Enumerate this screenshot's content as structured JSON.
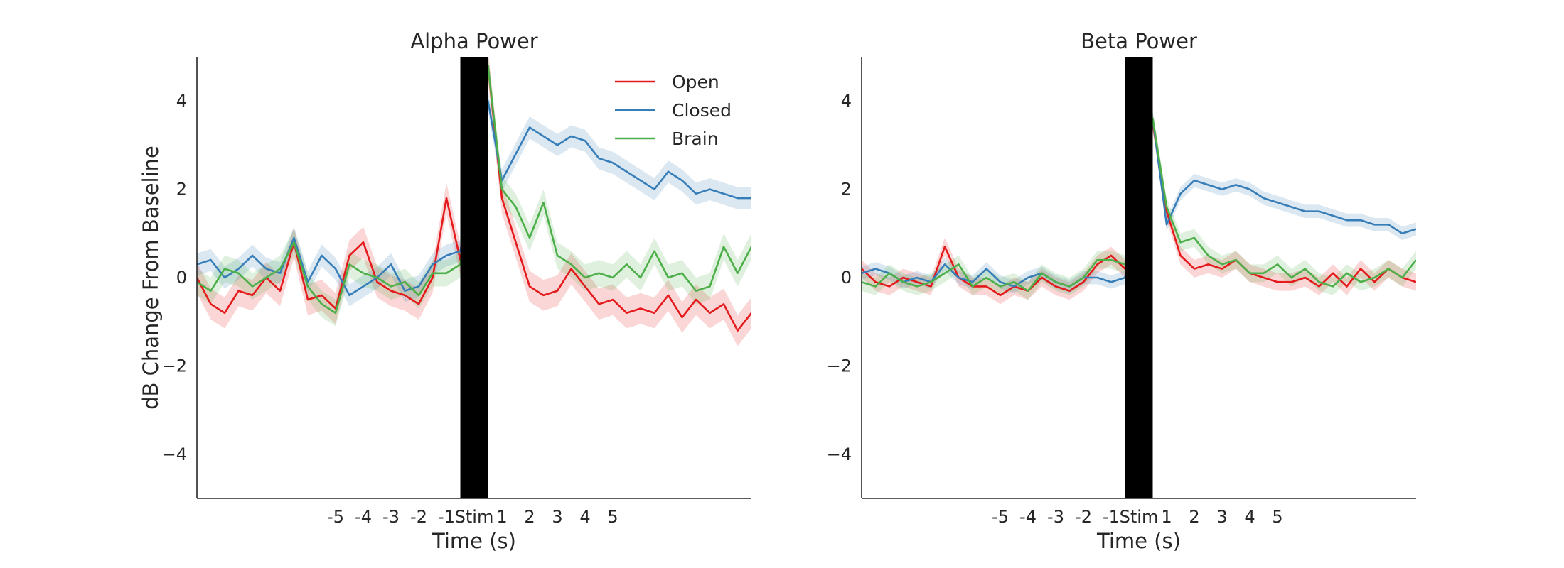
{
  "chart_data": [
    {
      "type": "line",
      "title": "Alpha Power",
      "xlabel": "Time (s)",
      "ylabel": "dB Change From Baseline",
      "xlim": [
        -10,
        10
      ],
      "ylim": [
        -5,
        5
      ],
      "xticks": [
        {
          "value": -5,
          "label": "-5"
        },
        {
          "value": -4,
          "label": "-4"
        },
        {
          "value": -3,
          "label": "-3"
        },
        {
          "value": -2,
          "label": "-2"
        },
        {
          "value": -1,
          "label": "-1"
        },
        {
          "value": 0,
          "label": "Stim"
        },
        {
          "value": 1,
          "label": "1"
        },
        {
          "value": 2,
          "label": "2"
        },
        {
          "value": 3,
          "label": "3"
        },
        {
          "value": 4,
          "label": "4"
        },
        {
          "value": 5,
          "label": "5"
        }
      ],
      "yticks": [
        {
          "value": -4,
          "label": "−4"
        },
        {
          "value": -2,
          "label": "−2"
        },
        {
          "value": 0,
          "label": "0"
        },
        {
          "value": 2,
          "label": "2"
        },
        {
          "value": 4,
          "label": "4"
        }
      ],
      "stim_band": [
        -0.5,
        0.5
      ],
      "legend": "top-right",
      "grid": false,
      "series": [
        {
          "name": "Open",
          "color": "#e41a1c",
          "x": [
            -10,
            -9.5,
            -9,
            -8.5,
            -8,
            -7.5,
            -7,
            -6.5,
            -6,
            -5.5,
            -5,
            -4.5,
            -4,
            -3.5,
            -3,
            -2.5,
            -2,
            -1.5,
            -1,
            -0.5,
            0.5,
            1,
            1.5,
            2,
            2.5,
            3,
            3.5,
            4,
            4.5,
            5,
            5.5,
            6,
            6.5,
            7,
            7.5,
            8,
            8.5,
            9,
            9.5,
            10
          ],
          "y": [
            0.0,
            -0.6,
            -0.8,
            -0.3,
            -0.4,
            0.0,
            -0.3,
            0.8,
            -0.5,
            -0.4,
            -0.7,
            0.5,
            0.8,
            -0.1,
            -0.3,
            -0.4,
            -0.6,
            0.0,
            1.8,
            0.4,
            4.8,
            1.8,
            0.8,
            -0.2,
            -0.4,
            -0.3,
            0.2,
            -0.2,
            -0.6,
            -0.5,
            -0.8,
            -0.7,
            -0.8,
            -0.4,
            -0.9,
            -0.5,
            -0.8,
            -0.6,
            -1.2,
            -0.8
          ],
          "ci": 0.35
        },
        {
          "name": "Closed",
          "color": "#377eb8",
          "x": [
            -10,
            -9.5,
            -9,
            -8.5,
            -8,
            -7.5,
            -7,
            -6.5,
            -6,
            -5.5,
            -5,
            -4.5,
            -4,
            -3.5,
            -3,
            -2.5,
            -2,
            -1.5,
            -1,
            -0.5,
            0.5,
            1,
            1.5,
            2,
            2.5,
            3,
            3.5,
            4,
            4.5,
            5,
            5.5,
            6,
            6.5,
            7,
            7.5,
            8,
            8.5,
            9,
            9.5,
            10
          ],
          "y": [
            0.3,
            0.4,
            0.0,
            0.2,
            0.5,
            0.2,
            0.1,
            0.9,
            -0.1,
            0.5,
            0.2,
            -0.4,
            -0.2,
            0.0,
            0.3,
            -0.3,
            -0.2,
            0.3,
            0.5,
            0.6,
            4.0,
            2.2,
            2.8,
            3.4,
            3.2,
            3.0,
            3.2,
            3.1,
            2.7,
            2.6,
            2.4,
            2.2,
            2.0,
            2.4,
            2.2,
            1.9,
            2.0,
            1.9,
            1.8,
            1.8
          ],
          "ci": 0.25
        },
        {
          "name": "Brain",
          "color": "#4daf4a",
          "x": [
            -10,
            -9.5,
            -9,
            -8.5,
            -8,
            -7.5,
            -7,
            -6.5,
            -6,
            -5.5,
            -5,
            -4.5,
            -4,
            -3.5,
            -3,
            -2.5,
            -2,
            -1.5,
            -1,
            -0.5,
            0.5,
            1,
            1.5,
            2,
            2.5,
            3,
            3.5,
            4,
            4.5,
            5,
            5.5,
            6,
            6.5,
            7,
            7.5,
            8,
            8.5,
            9,
            9.5,
            10
          ],
          "y": [
            -0.1,
            -0.3,
            0.2,
            0.1,
            -0.2,
            0.0,
            0.2,
            0.8,
            -0.2,
            -0.6,
            -0.8,
            0.3,
            0.1,
            0.0,
            -0.2,
            -0.1,
            -0.4,
            0.1,
            0.1,
            0.3,
            4.8,
            2.0,
            1.6,
            0.9,
            1.7,
            0.5,
            0.3,
            0.0,
            0.1,
            0.0,
            0.3,
            0.0,
            0.6,
            0.0,
            0.1,
            -0.3,
            -0.2,
            0.7,
            0.1,
            0.7
          ],
          "ci": 0.3
        }
      ]
    },
    {
      "type": "line",
      "title": "Beta Power",
      "xlabel": "Time (s)",
      "ylabel": "",
      "xlim": [
        -10,
        10
      ],
      "ylim": [
        -5,
        5
      ],
      "xticks": [
        {
          "value": -5,
          "label": "-5"
        },
        {
          "value": -4,
          "label": "-4"
        },
        {
          "value": -3,
          "label": "-3"
        },
        {
          "value": -2,
          "label": "-2"
        },
        {
          "value": -1,
          "label": "-1"
        },
        {
          "value": 0,
          "label": "Stim"
        },
        {
          "value": 1,
          "label": "1"
        },
        {
          "value": 2,
          "label": "2"
        },
        {
          "value": 3,
          "label": "3"
        },
        {
          "value": 4,
          "label": "4"
        },
        {
          "value": 5,
          "label": "5"
        }
      ],
      "yticks": [
        {
          "value": -4,
          "label": "−4"
        },
        {
          "value": -2,
          "label": "−2"
        },
        {
          "value": 0,
          "label": "0"
        },
        {
          "value": 2,
          "label": "2"
        },
        {
          "value": 4,
          "label": "4"
        }
      ],
      "stim_band": [
        -0.5,
        0.5
      ],
      "grid": false,
      "series": [
        {
          "name": "Open",
          "color": "#e41a1c",
          "x": [
            -10,
            -9.5,
            -9,
            -8.5,
            -8,
            -7.5,
            -7,
            -6.5,
            -6,
            -5.5,
            -5,
            -4.5,
            -4,
            -3.5,
            -3,
            -2.5,
            -2,
            -1.5,
            -1,
            -0.5,
            0.5,
            1,
            1.5,
            2,
            2.5,
            3,
            3.5,
            4,
            4.5,
            5,
            5.5,
            6,
            6.5,
            7,
            7.5,
            8,
            8.5,
            9,
            9.5,
            10
          ],
          "y": [
            0.2,
            -0.1,
            -0.2,
            0.0,
            -0.1,
            -0.2,
            0.7,
            0.0,
            -0.2,
            -0.2,
            -0.4,
            -0.2,
            -0.3,
            0.0,
            -0.2,
            -0.3,
            -0.1,
            0.3,
            0.5,
            0.2,
            3.5,
            1.5,
            0.5,
            0.2,
            0.3,
            0.2,
            0.4,
            0.1,
            0.0,
            -0.1,
            -0.1,
            0.0,
            -0.2,
            0.1,
            -0.2,
            0.2,
            -0.1,
            0.2,
            0.0,
            -0.1
          ],
          "ci": 0.2
        },
        {
          "name": "Closed",
          "color": "#377eb8",
          "x": [
            -10,
            -9.5,
            -9,
            -8.5,
            -8,
            -7.5,
            -7,
            -6.5,
            -6,
            -5.5,
            -5,
            -4.5,
            -4,
            -3.5,
            -3,
            -2.5,
            -2,
            -1.5,
            -1,
            -0.5,
            0.5,
            1,
            1.5,
            2,
            2.5,
            3,
            3.5,
            4,
            4.5,
            5,
            5.5,
            6,
            6.5,
            7,
            7.5,
            8,
            8.5,
            9,
            9.5,
            10
          ],
          "y": [
            0.1,
            0.2,
            0.1,
            -0.1,
            0.0,
            -0.1,
            0.3,
            0.0,
            -0.1,
            0.2,
            -0.1,
            -0.2,
            0.0,
            0.1,
            -0.1,
            -0.2,
            0.0,
            0.0,
            -0.1,
            0.0,
            3.6,
            1.2,
            1.9,
            2.2,
            2.1,
            2.0,
            2.1,
            2.0,
            1.8,
            1.7,
            1.6,
            1.5,
            1.5,
            1.4,
            1.3,
            1.3,
            1.2,
            1.2,
            1.0,
            1.1
          ],
          "ci": 0.15
        },
        {
          "name": "Brain",
          "color": "#4daf4a",
          "x": [
            -10,
            -9.5,
            -9,
            -8.5,
            -8,
            -7.5,
            -7,
            -6.5,
            -6,
            -5.5,
            -5,
            -4.5,
            -4,
            -3.5,
            -3,
            -2.5,
            -2,
            -1.5,
            -1,
            -0.5,
            0.5,
            1,
            1.5,
            2,
            2.5,
            3,
            3.5,
            4,
            4.5,
            5,
            5.5,
            6,
            6.5,
            7,
            7.5,
            8,
            8.5,
            9,
            9.5,
            10
          ],
          "y": [
            -0.1,
            -0.2,
            0.1,
            -0.1,
            -0.2,
            -0.1,
            0.1,
            0.3,
            -0.2,
            0.0,
            -0.2,
            -0.1,
            -0.3,
            0.1,
            -0.1,
            -0.2,
            0.0,
            0.4,
            0.4,
            0.3,
            3.6,
            1.6,
            0.8,
            0.9,
            0.5,
            0.3,
            0.4,
            0.1,
            0.1,
            0.3,
            0.0,
            0.2,
            -0.1,
            -0.2,
            0.1,
            -0.1,
            0.0,
            0.2,
            0.0,
            0.4
          ],
          "ci": 0.2
        }
      ]
    }
  ]
}
